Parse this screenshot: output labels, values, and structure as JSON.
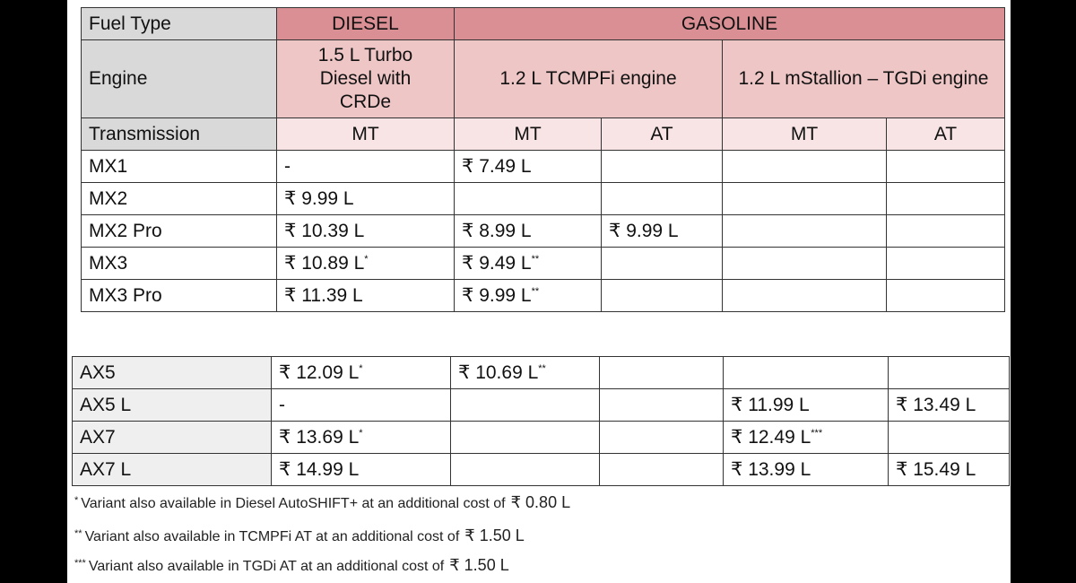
{
  "top_table": {
    "fuel_label": "Fuel Type",
    "fuel_types": [
      "DIESEL",
      "GASOLINE"
    ],
    "engine_label": "Engine",
    "engines": [
      "1.5 L Turbo Diesel with CRDe",
      "1.2 L TCMPFi engine",
      "1.2 L mStallion – TGDi engine"
    ],
    "transmission_label": "Transmission",
    "transmissions": [
      "MT",
      "MT",
      "AT",
      "MT",
      "AT"
    ],
    "rows": [
      [
        "MX1",
        "-",
        "₹ 7.49 L",
        null,
        null,
        null
      ],
      [
        "MX2",
        "₹ 9.99 L",
        null,
        null,
        null,
        null
      ],
      [
        "MX2 Pro",
        "₹ 10.39 L",
        "₹ 8.99 L",
        "₹ 9.99 L",
        null,
        null
      ],
      [
        "MX3",
        {
          "price": "₹ 10.89 L",
          "sup": "*"
        },
        {
          "price": "₹ 9.49 L",
          "sup": "**"
        },
        null,
        null,
        null
      ],
      [
        "MX3 Pro",
        "₹ 11.39 L",
        {
          "price": "₹ 9.99 L",
          "sup": "**"
        },
        null,
        null,
        null
      ]
    ]
  },
  "bottom_table": {
    "rows": [
      [
        "AX5",
        {
          "price": "₹ 12.09 L",
          "sup": "*"
        },
        {
          "price": "₹ 10.69 L",
          "sup": "**"
        },
        null,
        null,
        null
      ],
      [
        "AX5 L",
        "-",
        null,
        null,
        "₹ 11.99 L",
        "₹ 13.49 L"
      ],
      [
        "AX7",
        {
          "price": "₹ 13.69 L",
          "sup": "*"
        },
        null,
        null,
        {
          "price": "₹ 12.49 L",
          "sup": "***"
        },
        null
      ],
      [
        "AX7 L",
        "₹ 14.99 L",
        null,
        null,
        "₹ 13.99 L",
        "₹ 15.49 L"
      ]
    ]
  },
  "footnotes": [
    {
      "mark": "*",
      "text": "Variant also available in Diesel AutoSHIFT+ at an additional cost of",
      "amount": "₹ 0.80 L"
    },
    {
      "mark": "**",
      "text": "Variant also available in TCMPFi AT at an additional cost of",
      "amount": "₹ 1.50 L"
    },
    {
      "mark": "***",
      "text": "Variant also available in TGDi AT at an additional cost of",
      "amount": "₹ 1.50 L"
    }
  ]
}
